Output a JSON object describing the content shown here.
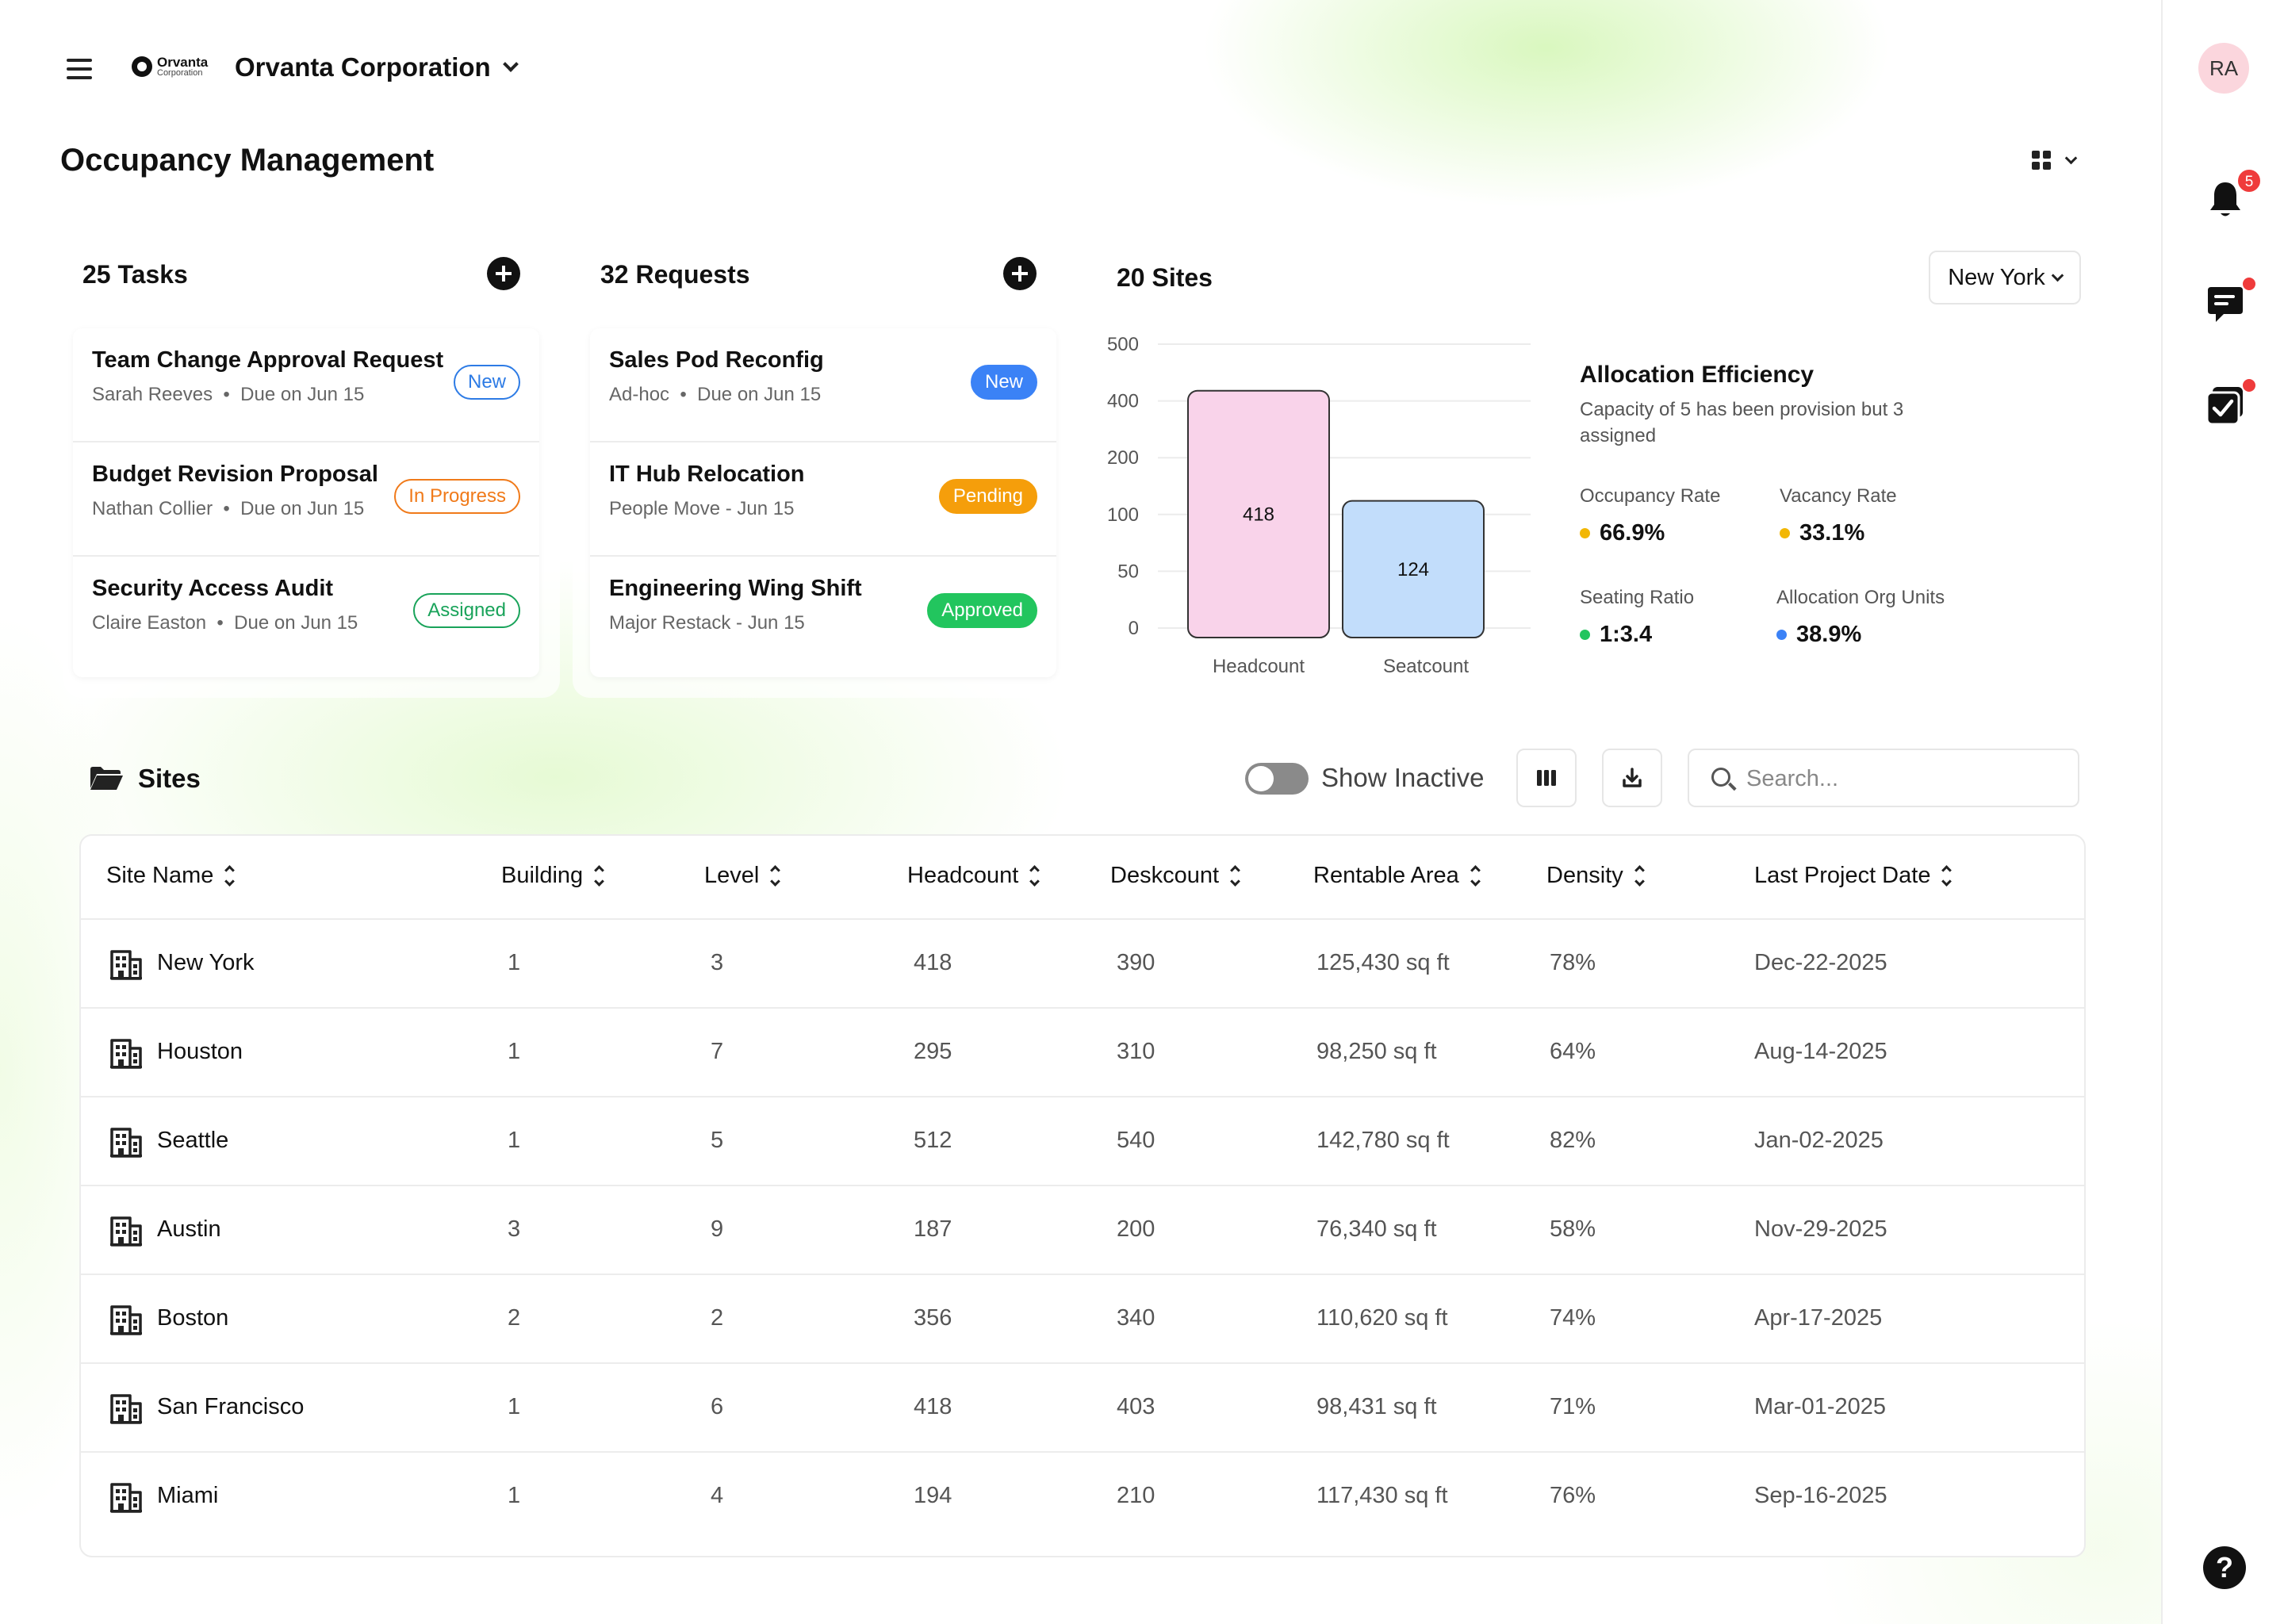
{
  "header": {
    "logo_line1": "Orvanta",
    "logo_line2": "Corporation",
    "org_name": "Orvanta Corporation",
    "page_title": "Occupancy Management"
  },
  "rail": {
    "avatar_initials": "RA",
    "notification_count": "5",
    "help_label": "?"
  },
  "tasks": {
    "title": "25 Tasks",
    "items": [
      {
        "title": "Team Change Approval Request",
        "person": "Sarah Reeves",
        "due": "Due on Jun 15",
        "badge": "New"
      },
      {
        "title": "Budget Revision Proposal",
        "person": "Nathan Collier",
        "due": "Due on Jun 15",
        "badge": "In Progress"
      },
      {
        "title": "Security Access Audit",
        "person": "Claire Easton",
        "due": "Due on Jun 15",
        "badge": "Assigned"
      }
    ]
  },
  "requests": {
    "title": "32 Requests",
    "items": [
      {
        "title": "Sales Pod Reconfig",
        "sub1": "Ad-hoc",
        "sub2": "Due on Jun 15",
        "badge": "New"
      },
      {
        "title": "IT Hub Relocation",
        "subtitle": "People Move - Jun 15",
        "badge": "Pending"
      },
      {
        "title": "Engineering Wing Shift",
        "subtitle": "Major Restack - Jun 15",
        "badge": "Approved"
      }
    ]
  },
  "sites_summary": {
    "title": "20 Sites",
    "selected_city": "New York"
  },
  "chart_data": {
    "type": "bar",
    "categories": [
      "Headcount",
      "Seatcount"
    ],
    "values": [
      418,
      124
    ],
    "y_ticks": [
      "0",
      "50",
      "100",
      "200",
      "400",
      "500"
    ],
    "colors": [
      "#f9d3ea",
      "#c2ddfb"
    ],
    "grid": true
  },
  "allocation": {
    "title": "Allocation Efficiency",
    "description": "Capacity of 5 has been provision but 3 assigned",
    "metrics": [
      {
        "label": "Occupancy Rate",
        "value": "66.9%",
        "color": "#f2b705"
      },
      {
        "label": "Vacancy Rate",
        "value": "33.1%",
        "color": "#f2b705"
      },
      {
        "label": "Seating Ratio",
        "value": "1:3.4",
        "color": "#22c55e"
      },
      {
        "label": "Allocation Org Units",
        "value": "38.9%",
        "color": "#3b82f6"
      }
    ]
  },
  "sites": {
    "title": "Sites",
    "show_inactive_label": "Show Inactive",
    "search_placeholder": "Search...",
    "columns": [
      "Site Name",
      "Building",
      "Level",
      "Headcount",
      "Deskcount",
      "Rentable Area",
      "Density",
      "Last Project Date"
    ],
    "rows": [
      [
        "New York",
        "1",
        "3",
        "418",
        "390",
        "125,430 sq ft",
        "78%",
        "Dec-22-2025"
      ],
      [
        "Houston",
        "1",
        "7",
        "295",
        "310",
        "98,250 sq ft",
        "64%",
        "Aug-14-2025"
      ],
      [
        "Seattle",
        "1",
        "5",
        "512",
        "540",
        "142,780 sq ft",
        "82%",
        "Jan-02-2025"
      ],
      [
        "Austin",
        "3",
        "9",
        "187",
        "200",
        "76,340 sq ft",
        "58%",
        "Nov-29-2025"
      ],
      [
        "Boston",
        "2",
        "2",
        "356",
        "340",
        "110,620 sq ft",
        "74%",
        "Apr-17-2025"
      ],
      [
        "San Francisco",
        "1",
        "6",
        "418",
        "403",
        "98,431 sq ft",
        "71%",
        "Mar-01-2025"
      ],
      [
        "Miami",
        "1",
        "4",
        "194",
        "210",
        "117,430 sq ft",
        "76%",
        "Sep-16-2025"
      ]
    ]
  }
}
